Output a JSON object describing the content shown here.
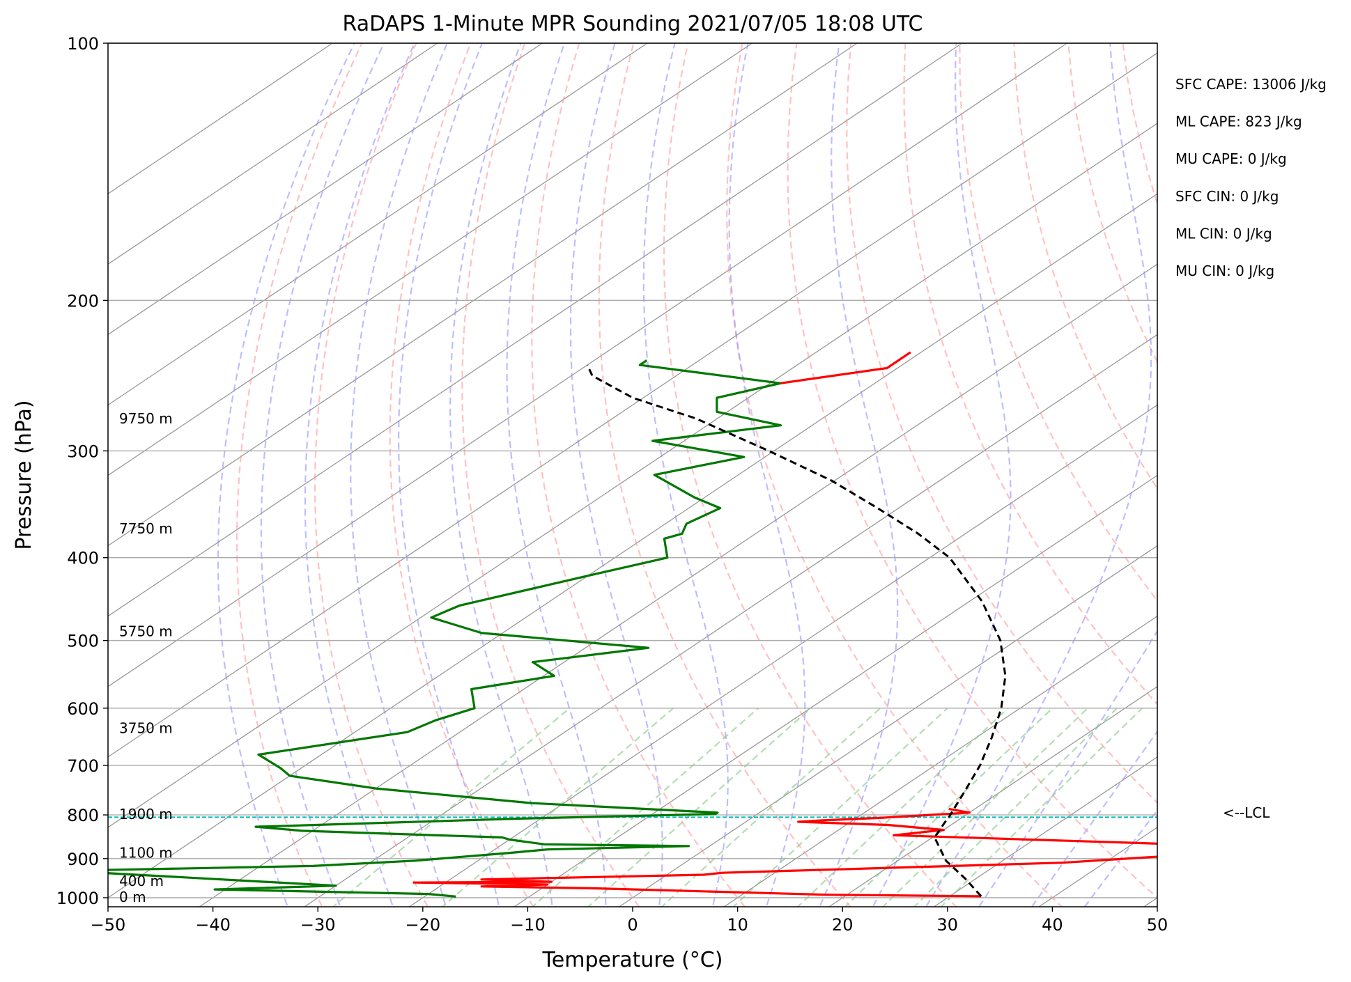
{
  "chart_data": {
    "type": "line",
    "title": "RaDAPS 1-Minute MPR Sounding 2021/07/05 18:08 UTC",
    "xlabel": "Temperature (°C)",
    "ylabel": "Pressure (hPa)",
    "xlim": [
      -50,
      50
    ],
    "ylim": [
      1050,
      100
    ],
    "y_scale": "log",
    "skew_t": true,
    "grid": true,
    "x_ticks": [
      -50,
      -40,
      -30,
      -20,
      -10,
      0,
      10,
      20,
      30,
      40,
      50
    ],
    "x_tick_labels": [
      "−50",
      "−40",
      "−30",
      "−20",
      "−10",
      "0",
      "10",
      "20",
      "30",
      "40",
      "50"
    ],
    "y_ticks": [
      1000,
      900,
      800,
      700,
      600,
      500,
      400,
      300,
      200,
      100
    ],
    "y_tick_labels": [
      "1000",
      "900",
      "800",
      "700",
      "600",
      "500",
      "400",
      "300",
      "200",
      "100"
    ],
    "colors": {
      "temperature": "#ff0000",
      "dewpoint": "#007700",
      "parcel": "#000000",
      "dry_adiabats": "#ff9090",
      "moist_adiabats": "#8888ff",
      "mixing_ratio": "#88cc88",
      "isotherms": "#999999",
      "lcl_line": "#00bcbc"
    },
    "series": [
      {
        "name": "",
        "key": "temperature",
        "points": [
          [
            33,
            996
          ],
          [
            18,
            992
          ],
          [
            -5,
            975
          ],
          [
            -16,
            970
          ],
          [
            -10,
            965
          ],
          [
            -23,
            960
          ],
          [
            -10,
            958
          ],
          [
            -17,
            952
          ],
          [
            3.5,
            940
          ],
          [
            5,
            935
          ],
          [
            36,
            910
          ],
          [
            50,
            885
          ],
          [
            50,
            870
          ],
          [
            16,
            845
          ],
          [
            20,
            833
          ],
          [
            14,
            822
          ],
          [
            5,
            815
          ],
          [
            7,
            812
          ],
          [
            12.5,
            806
          ],
          [
            14.5,
            803
          ],
          [
            20,
            795
          ],
          [
            17.5,
            787
          ]
        ]
      },
      {
        "name": "",
        "key": "dewpoint",
        "points": [
          [
            -17,
            997
          ],
          [
            -20,
            990
          ],
          [
            -41,
            978
          ],
          [
            -30,
            968
          ],
          [
            -58,
            930
          ],
          [
            -35,
            918
          ],
          [
            -26,
            905
          ],
          [
            -18,
            886
          ],
          [
            -15,
            878
          ],
          [
            -2,
            870
          ],
          [
            -16,
            866
          ],
          [
            -20,
            855
          ],
          [
            -21,
            850
          ],
          [
            -41,
            835
          ],
          [
            -46,
            826
          ],
          [
            -22,
            808
          ],
          [
            -4,
            798
          ],
          [
            -4,
            795
          ],
          [
            -23,
            775
          ],
          [
            -40,
            745
          ],
          [
            -50,
            720
          ],
          [
            -52,
            705
          ],
          [
            -56,
            680
          ],
          [
            -45,
            640
          ],
          [
            -44,
            620
          ],
          [
            -42,
            600
          ],
          [
            -45,
            570
          ],
          [
            -39,
            550
          ],
          [
            -43,
            530
          ],
          [
            -34,
            510
          ],
          [
            -52,
            490
          ],
          [
            -59,
            470
          ],
          [
            -58,
            455
          ],
          [
            -50,
            420
          ],
          [
            -45,
            400
          ],
          [
            -48,
            380
          ],
          [
            -47,
            375
          ],
          [
            -48,
            365
          ],
          [
            -47,
            350
          ],
          [
            -51,
            340
          ],
          [
            -58,
            320
          ],
          [
            -52,
            305
          ],
          [
            -63,
            292
          ],
          [
            -53,
            280
          ],
          [
            -61,
            270
          ],
          [
            -63,
            260
          ],
          [
            -59,
            250
          ],
          [
            -75,
            238
          ],
          [
            -75,
            235
          ]
        ]
      },
      {
        "name": "",
        "key": "temperature_top",
        "points": [
          [
            -59,
            250
          ],
          [
            -51,
            240
          ],
          [
            -51,
            230
          ]
        ]
      },
      {
        "name": "",
        "key": "parcel",
        "points": [
          [
            33,
            996
          ],
          [
            29,
            950
          ],
          [
            24.6,
            905
          ],
          [
            20.2,
            850
          ],
          [
            19,
            815
          ],
          [
            18.7,
            805
          ],
          [
            16.5,
            750
          ],
          [
            14.3,
            700
          ],
          [
            11.5,
            650
          ],
          [
            8.2,
            600
          ],
          [
            4,
            550
          ],
          [
            -1.5,
            500
          ],
          [
            -8.8,
            450
          ],
          [
            -18.1,
            400
          ],
          [
            -24.5,
            375
          ],
          [
            -32,
            350
          ],
          [
            -40.3,
            325
          ],
          [
            -50.5,
            300
          ],
          [
            -62,
            275
          ],
          [
            -71,
            260
          ],
          [
            -78,
            245
          ],
          [
            -80,
            238
          ]
        ]
      }
    ],
    "lcl_pressure": 805,
    "lcl_label": "<--LCL",
    "height_labels": [
      {
        "text": "9750 m",
        "p": 275
      },
      {
        "text": "7750 m",
        "p": 370
      },
      {
        "text": "5750 m",
        "p": 488
      },
      {
        "text": "3750 m",
        "p": 633
      },
      {
        "text": "1900 m",
        "p": 798
      },
      {
        "text": "1100 m",
        "p": 886
      },
      {
        "text": "400 m",
        "p": 956
      },
      {
        "text": "0 m",
        "p": 998
      }
    ],
    "stats": [
      "SFC CAPE: 13006 J/kg",
      "ML CAPE: 823 J/kg",
      "MU CAPE: 0 J/kg",
      "SFC CIN: 0 J/kg",
      "ML CIN: 0 J/kg",
      "MU CIN: 0 J/kg"
    ]
  }
}
